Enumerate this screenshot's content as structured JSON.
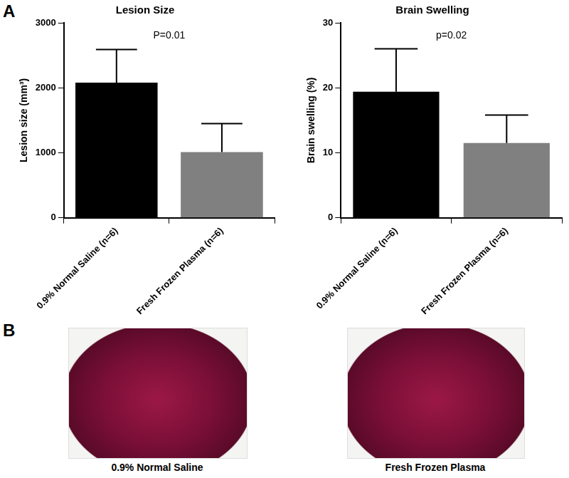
{
  "chart_data": [
    {
      "type": "bar",
      "title": "Lesion Size",
      "y_label": "Lesion size (mm³)",
      "categories": [
        "0.9% Normal Saline (n=6)",
        "Fresh Frozen Plasma (n=6)"
      ],
      "values": [
        2080,
        1010
      ],
      "errors": [
        510,
        440
      ],
      "colors": [
        "#000000",
        "#808080"
      ],
      "ylim": [
        0,
        3000
      ],
      "yticks": [
        0,
        1000,
        2000,
        3000
      ],
      "grid": false,
      "annotation": "P=0.01"
    },
    {
      "type": "bar",
      "title": "Brain Swelling",
      "y_label": "Brain swelling (%)",
      "categories": [
        "0.9% Normal Saline (n=6)",
        "Fresh Frozen Plasma (n=6)"
      ],
      "values": [
        19.4,
        11.5
      ],
      "errors": [
        6.6,
        4.3
      ],
      "colors": [
        "#000000",
        "#808080"
      ],
      "ylim": [
        0,
        30
      ],
      "yticks": [
        0,
        10,
        20,
        30
      ],
      "grid": false,
      "annotation": "p=0.02"
    }
  ],
  "panel_labels": [
    "A",
    "B"
  ],
  "images": [
    {
      "caption": "0.9% Normal Saline"
    },
    {
      "caption": "Fresh Frozen Plasma"
    }
  ]
}
